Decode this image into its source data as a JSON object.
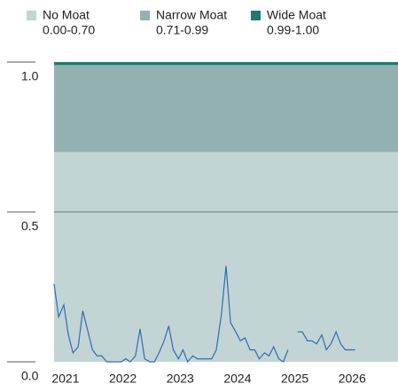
{
  "chart_data": {
    "type": "line",
    "bands": [
      {
        "name": "No Moat",
        "range": "0.00-0.70",
        "from": 0,
        "to": 0.7,
        "color": "#c3d4d4"
      },
      {
        "name": "Narrow Moat",
        "range": "0.71-0.99",
        "from": 0.7,
        "to": 0.99,
        "color": "#93b1b1"
      },
      {
        "name": "Wide Moat",
        "range": "0.99-1.00",
        "from": 0.99,
        "to": 1.0,
        "color": "#1f7a70"
      }
    ],
    "x": [
      2020.8,
      2020.88,
      2020.97,
      2021.05,
      2021.13,
      2021.22,
      2021.3,
      2021.38,
      2021.47,
      2021.55,
      2021.63,
      2021.72,
      2021.8,
      2021.88,
      2021.97,
      2022.05,
      2022.13,
      2022.22,
      2022.3,
      2022.38,
      2022.47,
      2022.55,
      2022.63,
      2022.72,
      2022.8,
      2022.88,
      2022.97,
      2023.05,
      2023.13,
      2023.22,
      2023.3,
      2023.38,
      2023.47,
      2023.55,
      2023.63,
      2023.72,
      2023.8,
      2023.88,
      2023.97,
      2024.05,
      2024.13,
      2024.22,
      2024.3,
      2024.38,
      2024.47,
      2024.55,
      2024.63,
      2024.72,
      2024.8,
      2024.88,
      2024.97,
      2025.05,
      2025.13,
      2025.22,
      2025.3,
      2025.38,
      2025.47,
      2025.55,
      2025.63,
      2025.72,
      2025.8,
      2025.88,
      2025.97,
      2026.05
    ],
    "series": [
      {
        "color": "#2a6ebb",
        "values": [
          0.26,
          0.15,
          0.19,
          0.09,
          0.03,
          0.05,
          0.17,
          0.11,
          0.04,
          0.02,
          0.02,
          0.0,
          0.0,
          0.0,
          0.0,
          0.01,
          0.0,
          0.02,
          0.11,
          0.01,
          0.0,
          0.0,
          0.03,
          0.07,
          0.12,
          0.04,
          0.01,
          0.04,
          0.0,
          0.02,
          0.01,
          0.01,
          0.01,
          0.01,
          0.04,
          0.16,
          0.32,
          0.13,
          0.1,
          0.07,
          0.08,
          0.04,
          0.04,
          0.01,
          0.03,
          0.02,
          0.05,
          0.01,
          0.0,
          0.04,
          null,
          0.1,
          0.1,
          0.07,
          0.07,
          0.06,
          0.09,
          0.04,
          0.06,
          0.1,
          0.06,
          0.04,
          0.04,
          0.04
        ]
      }
    ],
    "xlim": [
      2020.8,
      2026.8
    ],
    "xticks": [
      2021,
      2022,
      2023,
      2024,
      2025,
      2026
    ],
    "ylim": [
      0,
      1
    ],
    "yticks": [
      {
        "value": 0,
        "label": "0.0"
      },
      {
        "value": 0.5,
        "label": "0.5"
      },
      {
        "value": 1,
        "label": "1.0"
      }
    ]
  }
}
